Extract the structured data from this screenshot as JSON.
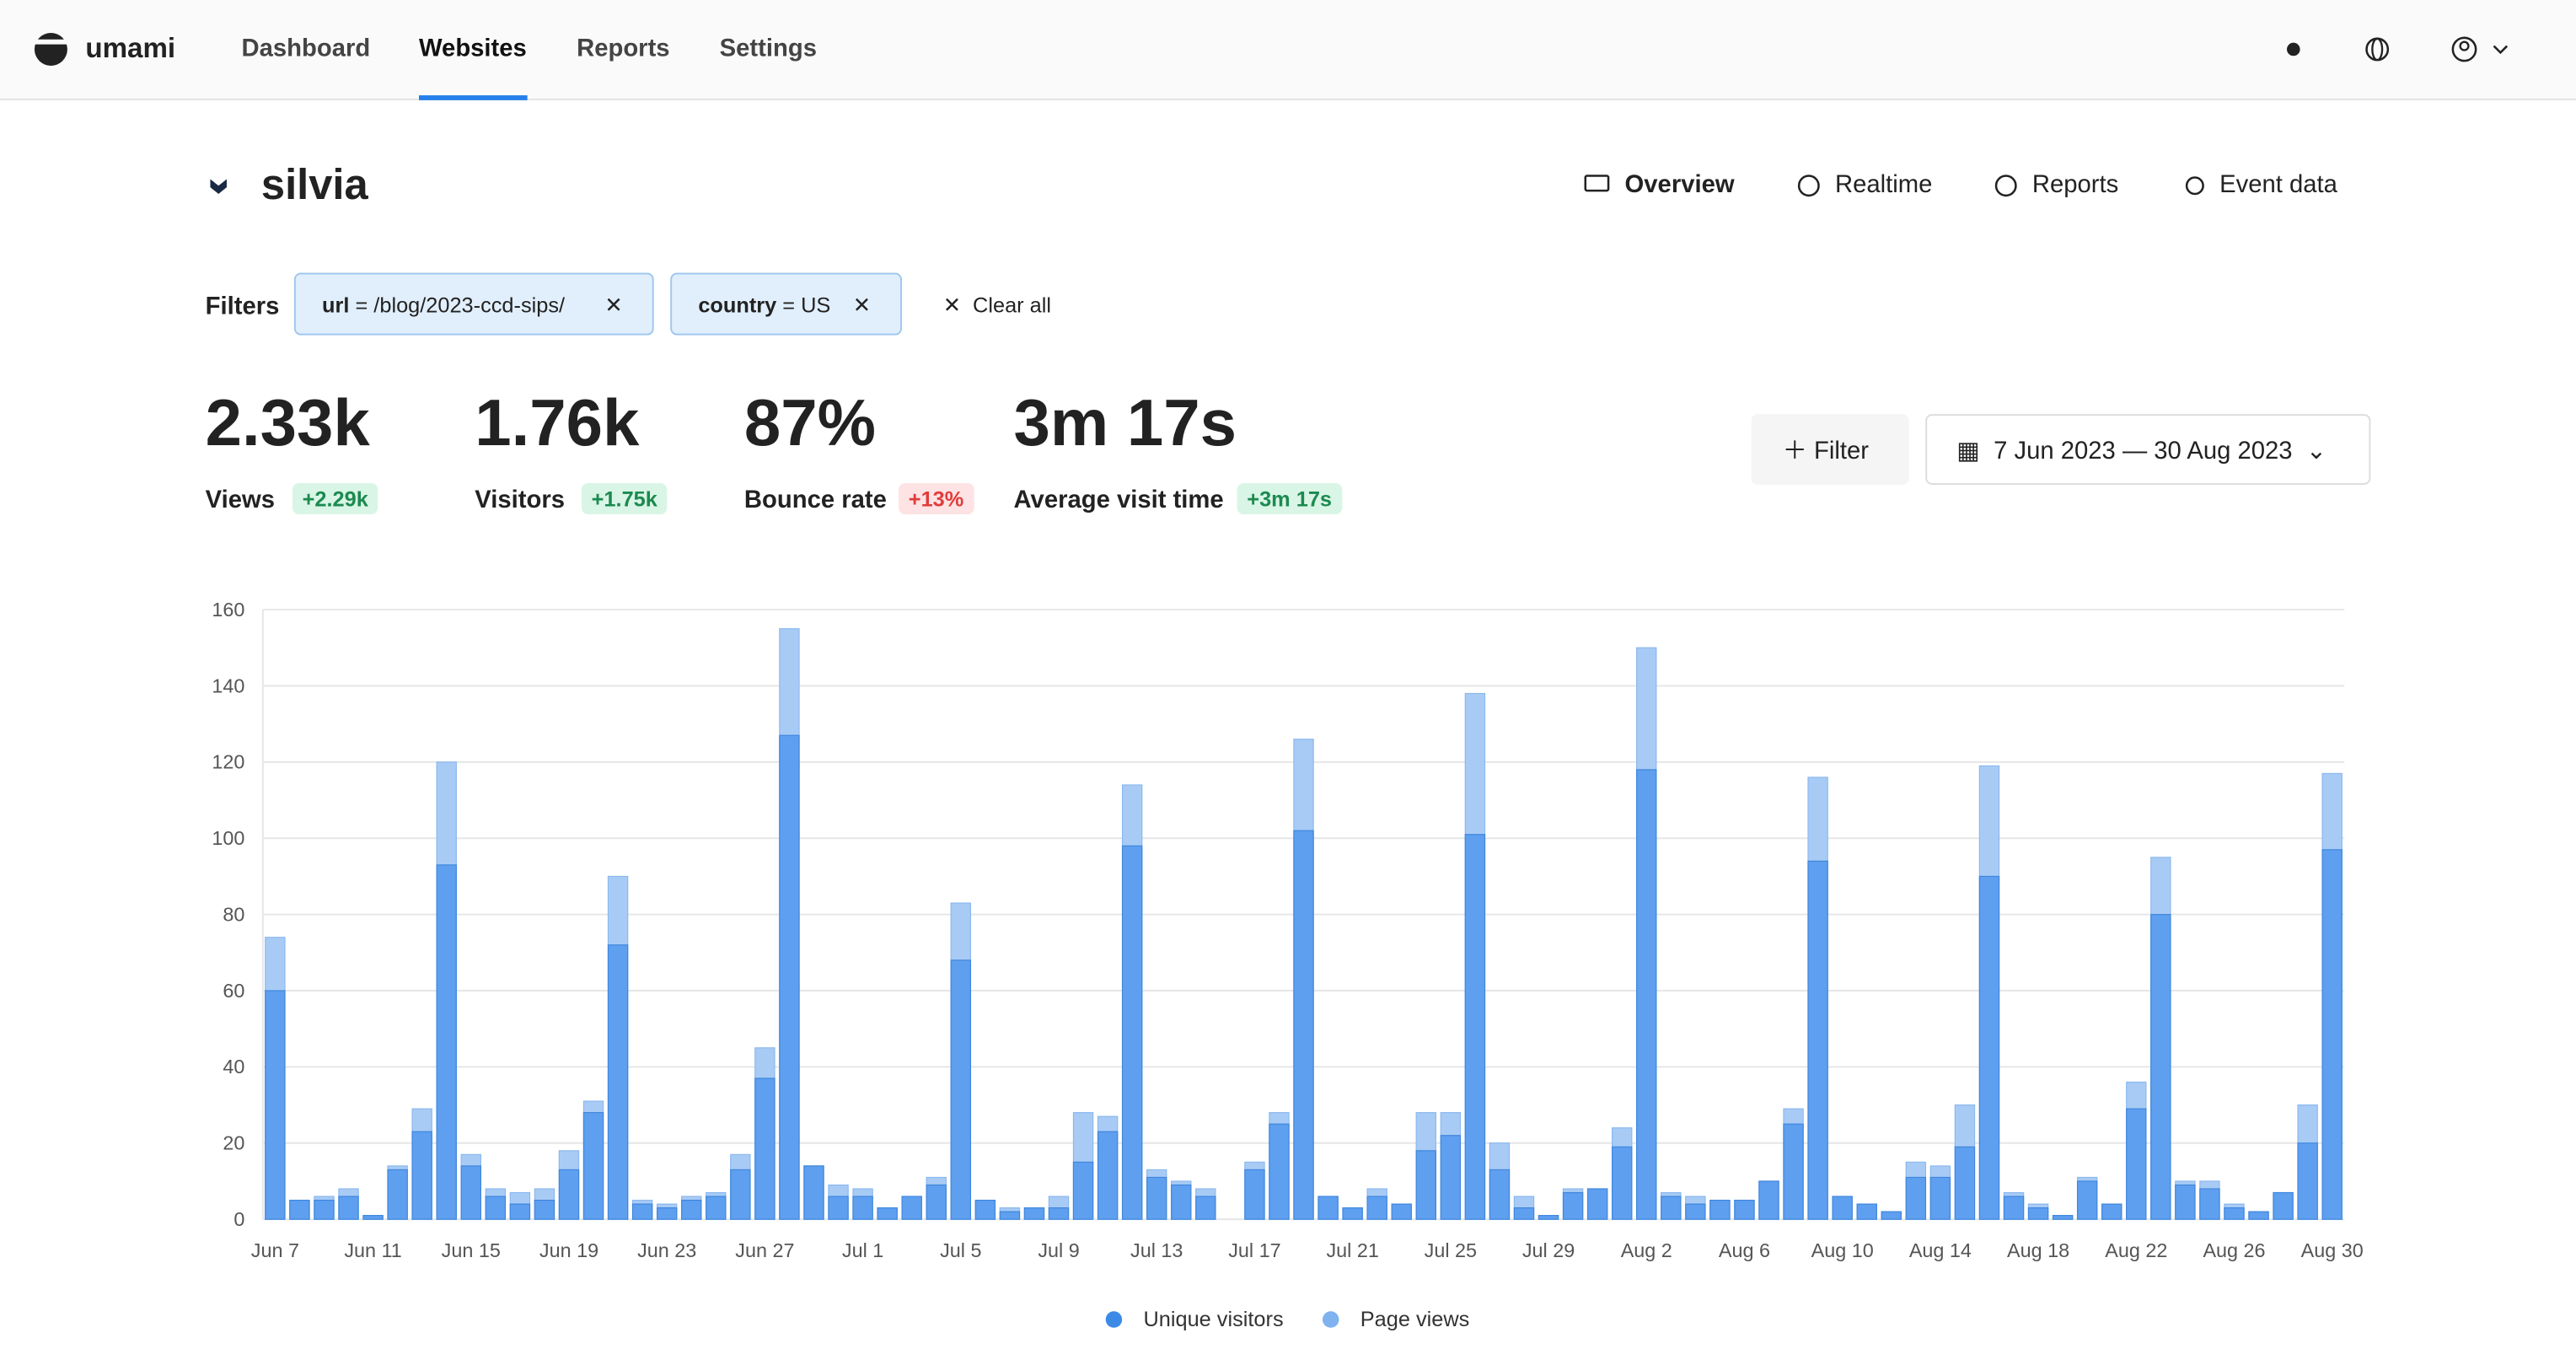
{
  "header": {
    "logo": "umami",
    "nav": [
      "Dashboard",
      "Websites",
      "Reports",
      "Settings"
    ]
  },
  "website": {
    "name": "silvia",
    "tabs": [
      "Overview",
      "Realtime",
      "Reports",
      "Event data"
    ]
  },
  "filters": {
    "label": "Filters",
    "items": [
      {
        "key": "url",
        "op": "= /blog/2023-ccd-sips/"
      },
      {
        "key": "country",
        "op": "= US"
      }
    ],
    "clear": "Clear all"
  },
  "stats": [
    {
      "value": "2.33k",
      "label": "Views",
      "change": "+2.29k"
    },
    {
      "value": "1.76k",
      "label": "Visitors",
      "change": "+1.75k"
    },
    {
      "value": "87%",
      "label": "Bounce rate",
      "change": "+13%"
    },
    {
      "value": "3m 17s",
      "label": "Average visit time",
      "change": "+3m 17s"
    }
  ],
  "controls": {
    "filter": "Filter",
    "date_range": "7 Jun 2023 — 30 Aug 2023"
  },
  "chart_data": {
    "type": "bar",
    "ylim": [
      0,
      160
    ],
    "yticks": [
      0,
      20,
      40,
      60,
      80,
      100,
      120,
      140,
      160
    ],
    "grid": true,
    "categories": [
      "Jun 7",
      null,
      null,
      null,
      "Jun 11",
      null,
      null,
      null,
      "Jun 15",
      null,
      null,
      null,
      "Jun 19",
      null,
      null,
      null,
      "Jun 23",
      null,
      null,
      null,
      "Jun 27",
      null,
      null,
      null,
      "Jul 1",
      null,
      null,
      null,
      "Jul 5",
      null,
      null,
      null,
      "Jul 9",
      null,
      null,
      null,
      "Jul 13",
      null,
      null,
      null,
      "Jul 17",
      null,
      null,
      null,
      "Jul 21",
      null,
      null,
      null,
      "Jul 25",
      null,
      null,
      null,
      "Jul 29",
      null,
      null,
      null,
      "Aug 2",
      null,
      null,
      null,
      "Aug 6",
      null,
      null,
      null,
      "Aug 10",
      null,
      null,
      null,
      "Aug 14",
      null,
      null,
      null,
      "Aug 18",
      null,
      null,
      null,
      "Aug 22",
      null,
      null,
      null,
      "Aug 26",
      null,
      null,
      null,
      "Aug 30"
    ],
    "series": [
      {
        "name": "Unique visitors",
        "color": "#5e9ff0",
        "values": [
          60,
          5,
          5,
          6,
          1,
          13,
          23,
          93,
          14,
          6,
          4,
          5,
          13,
          28,
          72,
          4,
          3,
          5,
          6,
          13,
          37,
          127,
          14,
          6,
          6,
          3,
          6,
          9,
          68,
          5,
          2,
          3,
          3,
          15,
          23,
          98,
          11,
          9,
          6,
          0,
          13,
          25,
          102,
          6,
          3,
          6,
          4,
          18,
          22,
          101,
          13,
          3,
          1,
          7,
          8,
          19,
          118,
          6,
          4,
          5,
          5,
          10,
          25,
          94,
          6,
          4,
          2,
          11,
          11,
          19,
          90,
          6,
          3,
          1,
          10,
          4,
          29,
          80,
          9,
          8,
          3,
          2,
          7,
          20,
          97
        ]
      },
      {
        "name": "Page views",
        "color": "#a8cbf5",
        "values": [
          74,
          5,
          6,
          8,
          1,
          14,
          29,
          120,
          17,
          8,
          7,
          8,
          18,
          31,
          90,
          5,
          4,
          6,
          7,
          17,
          45,
          155,
          14,
          9,
          8,
          3,
          6,
          11,
          83,
          5,
          3,
          3,
          6,
          28,
          27,
          114,
          13,
          10,
          8,
          0,
          15,
          28,
          126,
          6,
          3,
          8,
          4,
          28,
          28,
          138,
          20,
          6,
          1,
          8,
          8,
          24,
          150,
          7,
          6,
          5,
          5,
          10,
          29,
          116,
          6,
          4,
          2,
          15,
          14,
          30,
          119,
          7,
          4,
          1,
          11,
          4,
          36,
          95,
          10,
          10,
          4,
          2,
          7,
          30,
          117
        ]
      }
    ]
  }
}
